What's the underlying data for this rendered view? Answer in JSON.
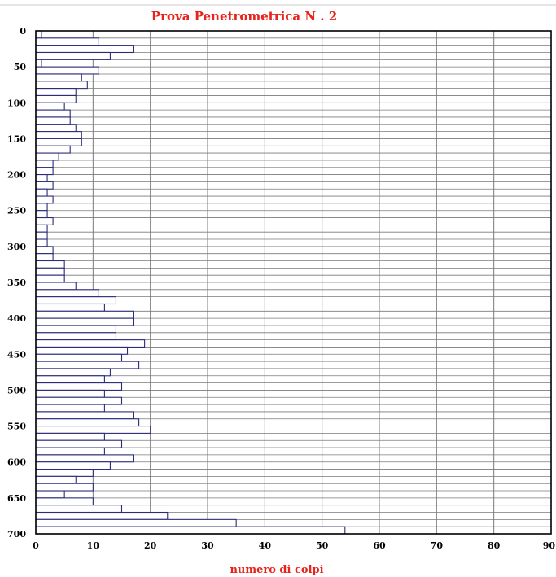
{
  "chart_data": {
    "type": "bar",
    "orientation": "horizontal",
    "title": "Prova Penetrometrica N . 2",
    "xlabel": "numero di colpi",
    "ylabel": "",
    "xlim": [
      0,
      90
    ],
    "ylim": [
      0,
      700
    ],
    "y_inverted": true,
    "grid": true,
    "x_ticks": [
      "0",
      "10",
      "20",
      "30",
      "40",
      "50",
      "60",
      "70",
      "80",
      "90"
    ],
    "y_ticks": [
      "0",
      "50",
      "100",
      "150",
      "200",
      "250",
      "300",
      "350",
      "400",
      "450",
      "500",
      "550",
      "600",
      "650",
      "700"
    ],
    "depth_interval": 10,
    "depths": [
      0,
      10,
      20,
      30,
      40,
      50,
      60,
      70,
      80,
      90,
      100,
      110,
      120,
      130,
      140,
      150,
      160,
      170,
      180,
      190,
      200,
      210,
      220,
      230,
      240,
      250,
      260,
      270,
      280,
      290,
      300,
      310,
      320,
      330,
      340,
      350,
      360,
      370,
      380,
      390,
      400,
      410,
      420,
      430,
      440,
      450,
      460,
      470,
      480,
      490,
      500,
      510,
      520,
      530,
      540,
      550,
      560,
      570,
      580,
      590,
      600,
      610,
      620,
      630,
      640,
      650,
      660,
      670,
      680,
      690
    ],
    "values": [
      1,
      11,
      17,
      13,
      1,
      11,
      8,
      9,
      7,
      7,
      5,
      6,
      6,
      7,
      8,
      8,
      6,
      4,
      3,
      3,
      2,
      3,
      2,
      3,
      2,
      2,
      3,
      2,
      2,
      2,
      3,
      3,
      5,
      5,
      5,
      7,
      11,
      14,
      12,
      17,
      17,
      14,
      14,
      19,
      16,
      15,
      18,
      13,
      12,
      15,
      12,
      15,
      12,
      17,
      18,
      20,
      12,
      15,
      12,
      17,
      13,
      10,
      7,
      10,
      5,
      10,
      15,
      23,
      35,
      54
    ],
    "colors": {
      "bar_stroke": "#2b2b7a",
      "bar_fill": "#ffffff",
      "grid": "#7a7a7a",
      "title": "#e8231b"
    }
  }
}
